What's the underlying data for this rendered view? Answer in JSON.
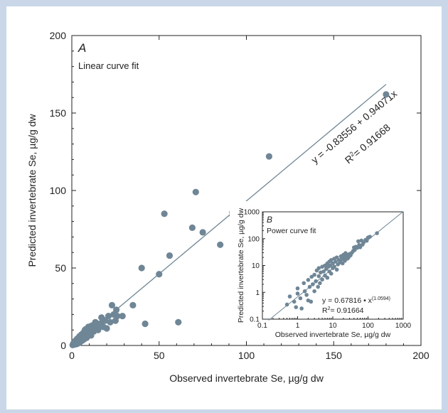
{
  "chart_data": [
    {
      "panel_letter": "A",
      "type": "scatter",
      "title": "Linear curve fit",
      "xlabel": "Observed invertebrate Se, µg/g dw",
      "ylabel": "Predicted invertebrate Se, µg/g dw",
      "xlim": [
        0,
        200
      ],
      "ylim": [
        0,
        200
      ],
      "xticks": [
        0,
        50,
        100,
        150,
        200
      ],
      "yticks": [
        0,
        50,
        100,
        150,
        200
      ],
      "fit": {
        "intercept": -0.83556,
        "slope": 0.94071,
        "x_range": [
          0,
          180
        ]
      },
      "equation": "y = -0.83556 + 0.94071x",
      "r2_prefix": "R",
      "r2_sup": "2",
      "r2_value": "= 0.91668",
      "points": [
        [
          0.5,
          0.3
        ],
        [
          0.8,
          0.9
        ],
        [
          1,
          1.5
        ],
        [
          1.2,
          0.6
        ],
        [
          1.5,
          2.2
        ],
        [
          1.8,
          1.2
        ],
        [
          2,
          3
        ],
        [
          2.2,
          0.8
        ],
        [
          2.5,
          2
        ],
        [
          2.8,
          3.5
        ],
        [
          3,
          4.2
        ],
        [
          3.3,
          1.5
        ],
        [
          3.5,
          2.8
        ],
        [
          3.8,
          5
        ],
        [
          4,
          3.5
        ],
        [
          4.3,
          1.8
        ],
        [
          4.5,
          6
        ],
        [
          5,
          2.5
        ],
        [
          5.2,
          4.5
        ],
        [
          5.5,
          7
        ],
        [
          6,
          3.2
        ],
        [
          6.2,
          5.5
        ],
        [
          6.5,
          8
        ],
        [
          7,
          4
        ],
        [
          7.2,
          6.5
        ],
        [
          7.5,
          10
        ],
        [
          8,
          7.5
        ],
        [
          8.5,
          5
        ],
        [
          9,
          9
        ],
        [
          9.5,
          12
        ],
        [
          10,
          8
        ],
        [
          10.5,
          11
        ],
        [
          11,
          6.5
        ],
        [
          11.5,
          10
        ],
        [
          12,
          13
        ],
        [
          12.5,
          9
        ],
        [
          13,
          11
        ],
        [
          13.5,
          15
        ],
        [
          14,
          12.5
        ],
        [
          15,
          10
        ],
        [
          16,
          14
        ],
        [
          17,
          18
        ],
        [
          18,
          12
        ],
        [
          19,
          16
        ],
        [
          20,
          11
        ],
        [
          21,
          19
        ],
        [
          22,
          15
        ],
        [
          23,
          26
        ],
        [
          24,
          20
        ],
        [
          25,
          16
        ],
        [
          25.5,
          23
        ],
        [
          26,
          19
        ],
        [
          29,
          19
        ],
        [
          35,
          26
        ],
        [
          40,
          50
        ],
        [
          42,
          14
        ],
        [
          50,
          46
        ],
        [
          53,
          85
        ],
        [
          56,
          58
        ],
        [
          61,
          15
        ],
        [
          69,
          76
        ],
        [
          71,
          99
        ],
        [
          75,
          73
        ],
        [
          85,
          65
        ],
        [
          92,
          84
        ],
        [
          92,
          86
        ],
        [
          113,
          122
        ],
        [
          180,
          162
        ],
        [
          3,
          1
        ],
        [
          4,
          2.2
        ],
        [
          6,
          4.8
        ],
        [
          8,
          10.5
        ],
        [
          9,
          7
        ],
        [
          11,
          12.5
        ],
        [
          13,
          10.2
        ],
        [
          15,
          12
        ],
        [
          17,
          13
        ],
        [
          18,
          16.5
        ]
      ]
    },
    {
      "panel_letter": "B",
      "type": "scatter",
      "scale": "log-log",
      "title": "Power curve fit",
      "xlabel": "Observed invertebrate Se, µg/g dw",
      "ylabel": "Predicted invertebrate Se, µg/g dw",
      "xlim": [
        0.1,
        1000
      ],
      "ylim": [
        0.1,
        1000
      ],
      "tick_labels": [
        "0.1",
        "1",
        "10",
        "100",
        "1000"
      ],
      "fit": {
        "coef": 0.67816,
        "exponent": 1.0594
      },
      "equation_prefix": "y = 0.67816 • x",
      "equation_exponent": "(1.0594)",
      "r2_prefix": "R",
      "r2_sup": "2",
      "r2_value": "= 0.91664",
      "points": [
        [
          0.5,
          0.35
        ],
        [
          0.6,
          0.7
        ],
        [
          0.8,
          0.45
        ],
        [
          1,
          0.9
        ],
        [
          1,
          1.4
        ],
        [
          1.2,
          0.6
        ],
        [
          1.5,
          2.2
        ],
        [
          1.6,
          1.1
        ],
        [
          1.8,
          0.8
        ],
        [
          2,
          2.9
        ],
        [
          2,
          0.5
        ],
        [
          2.2,
          1.6
        ],
        [
          2.5,
          3.8
        ],
        [
          2.7,
          2
        ],
        [
          3,
          1.1
        ],
        [
          3,
          4.5
        ],
        [
          3.3,
          2.6
        ],
        [
          3.5,
          6.5
        ],
        [
          3.8,
          1.6
        ],
        [
          4,
          4
        ],
        [
          4,
          8
        ],
        [
          4.3,
          2.2
        ],
        [
          4.5,
          5.5
        ],
        [
          5,
          3
        ],
        [
          5,
          9
        ],
        [
          5.5,
          6
        ],
        [
          6,
          4.2
        ],
        [
          6,
          10
        ],
        [
          6.5,
          7.5
        ],
        [
          7,
          3.5
        ],
        [
          7,
          12
        ],
        [
          7.5,
          9
        ],
        [
          8,
          6
        ],
        [
          8,
          14
        ],
        [
          8.5,
          10
        ],
        [
          9,
          5
        ],
        [
          9,
          16
        ],
        [
          10,
          8
        ],
        [
          10,
          12
        ],
        [
          11,
          18
        ],
        [
          11,
          9
        ],
        [
          12,
          14
        ],
        [
          13,
          7
        ],
        [
          13,
          20
        ],
        [
          14,
          11
        ],
        [
          15,
          16
        ],
        [
          16,
          13
        ],
        [
          17,
          22
        ],
        [
          18,
          17
        ],
        [
          19,
          12
        ],
        [
          20,
          25
        ],
        [
          21,
          19
        ],
        [
          22,
          15
        ],
        [
          23,
          29
        ],
        [
          24,
          21
        ],
        [
          25,
          25
        ],
        [
          26,
          18
        ],
        [
          28,
          20
        ],
        [
          30,
          27
        ],
        [
          32,
          24
        ],
        [
          35,
          30
        ],
        [
          38,
          35
        ],
        [
          40,
          47
        ],
        [
          42,
          38
        ],
        [
          45,
          50
        ],
        [
          50,
          46
        ],
        [
          53,
          80
        ],
        [
          56,
          58
        ],
        [
          60,
          48
        ],
        [
          65,
          85
        ],
        [
          70,
          60
        ],
        [
          75,
          72
        ],
        [
          85,
          90
        ],
        [
          92,
          84
        ],
        [
          100,
          110
        ],
        [
          113,
          118
        ],
        [
          180,
          160
        ],
        [
          1.3,
          0.25
        ],
        [
          0.9,
          0.28
        ],
        [
          2.4,
          0.45
        ]
      ]
    }
  ]
}
